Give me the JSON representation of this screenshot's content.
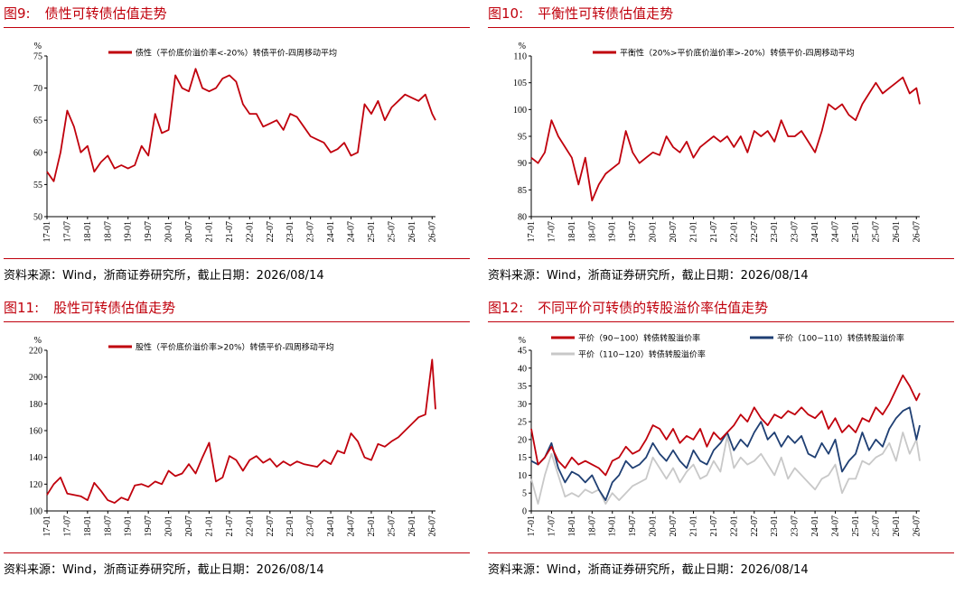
{
  "source_text": "资料来源：Wind，浙商证券研究所，截止日期：2026/08/14",
  "x_ticks": [
    "17-01",
    "17-07",
    "18-01",
    "18-07",
    "19-01",
    "19-07",
    "20-01",
    "20-07",
    "21-01",
    "21-07",
    "22-01",
    "22-07",
    "23-01",
    "23-07",
    "24-01",
    "24-07",
    "25-01",
    "25-07",
    "26-01",
    "26-07"
  ],
  "colors": {
    "red": "#c0000c",
    "blue": "#1f3f73",
    "gray": "#c8c8c8",
    "title": "#c0000c"
  },
  "charts": [
    {
      "fig_num": "图9:",
      "fig_title": "债性可转债估值走势",
      "chart_data": {
        "type": "line",
        "ylabel": "%",
        "ylim": [
          50,
          75
        ],
        "yticks": [
          50,
          55,
          60,
          65,
          70,
          75
        ],
        "x": [
          "17-01",
          "17-03",
          "17-05",
          "17-07",
          "17-09",
          "17-11",
          "18-01",
          "18-03",
          "18-05",
          "18-07",
          "18-09",
          "18-11",
          "19-01",
          "19-03",
          "19-05",
          "19-07",
          "19-09",
          "19-11",
          "20-01",
          "20-03",
          "20-05",
          "20-07",
          "20-09",
          "20-11",
          "21-01",
          "21-03",
          "21-05",
          "21-07",
          "21-09",
          "21-11",
          "22-01",
          "22-03",
          "22-05",
          "22-07",
          "22-09",
          "22-11",
          "23-01",
          "23-03",
          "23-05",
          "23-07",
          "23-09",
          "23-11",
          "24-01",
          "24-03",
          "24-05",
          "24-07",
          "24-09",
          "24-11",
          "25-01",
          "25-03",
          "25-05",
          "25-07",
          "25-09",
          "25-11",
          "26-01",
          "26-03",
          "26-05",
          "26-07",
          "26-08"
        ],
        "series": [
          {
            "name": "债性（平价底价溢价率<-20%）转债平价-四周移动平均",
            "color": "#c0000c",
            "values": [
              57,
              55.5,
              60,
              66.5,
              64,
              60,
              61,
              57,
              58.5,
              59.5,
              57.5,
              58,
              57.5,
              58,
              61,
              59.5,
              66,
              63,
              63.5,
              72,
              70,
              69.5,
              73,
              70,
              69.5,
              70,
              71.5,
              72,
              71,
              67.5,
              66,
              66,
              64,
              64.5,
              65,
              63.5,
              66,
              65.5,
              64,
              62.5,
              62,
              61.5,
              60,
              60.5,
              61.5,
              59.5,
              60,
              67.5,
              66,
              68,
              65,
              67,
              68,
              69,
              68.5,
              68,
              69,
              66,
              65
            ]
          }
        ]
      }
    },
    {
      "fig_num": "图10:",
      "fig_title": "平衡性可转债估值走势",
      "chart_data": {
        "type": "line",
        "ylabel": "%",
        "ylim": [
          80,
          110
        ],
        "yticks": [
          80,
          85,
          90,
          95,
          100,
          105,
          110
        ],
        "x": [
          "17-01",
          "17-03",
          "17-05",
          "17-07",
          "17-09",
          "17-11",
          "18-01",
          "18-03",
          "18-05",
          "18-07",
          "18-09",
          "18-11",
          "19-01",
          "19-03",
          "19-05",
          "19-07",
          "19-09",
          "19-11",
          "20-01",
          "20-03",
          "20-05",
          "20-07",
          "20-09",
          "20-11",
          "21-01",
          "21-03",
          "21-05",
          "21-07",
          "21-09",
          "21-11",
          "22-01",
          "22-03",
          "22-05",
          "22-07",
          "22-09",
          "22-11",
          "23-01",
          "23-03",
          "23-05",
          "23-07",
          "23-09",
          "23-11",
          "24-01",
          "24-03",
          "24-05",
          "24-07",
          "24-09",
          "24-11",
          "25-01",
          "25-03",
          "25-05",
          "25-07",
          "25-09",
          "25-11",
          "26-01",
          "26-03",
          "26-05",
          "26-07",
          "26-08"
        ],
        "series": [
          {
            "name": "平衡性（20%>平价底价溢价率>-20%）转债平价-四周移动平均",
            "color": "#c0000c",
            "values": [
              91,
              90,
              92,
              98,
              95,
              93,
              91,
              86,
              91,
              83,
              86,
              88,
              89,
              90,
              96,
              92,
              90,
              91,
              92,
              91.5,
              95,
              93,
              92,
              94,
              91,
              93,
              94,
              95,
              94,
              95,
              93,
              95,
              92,
              96,
              95,
              96,
              94,
              98,
              95,
              95,
              96,
              94,
              92,
              96,
              101,
              100,
              101,
              99,
              98,
              101,
              103,
              105,
              103,
              104,
              105,
              106,
              103,
              104,
              101
            ]
          }
        ]
      }
    },
    {
      "fig_num": "图11:",
      "fig_title": "股性可转债估值走势",
      "chart_data": {
        "type": "line",
        "ylabel": "%",
        "ylim": [
          100,
          220
        ],
        "yticks": [
          100,
          120,
          140,
          160,
          180,
          200,
          220
        ],
        "x": [
          "17-01",
          "17-03",
          "17-05",
          "17-07",
          "17-09",
          "17-11",
          "18-01",
          "18-03",
          "18-05",
          "18-07",
          "18-09",
          "18-11",
          "19-01",
          "19-03",
          "19-05",
          "19-07",
          "19-09",
          "19-11",
          "20-01",
          "20-03",
          "20-05",
          "20-07",
          "20-09",
          "20-11",
          "21-01",
          "21-03",
          "21-05",
          "21-07",
          "21-09",
          "21-11",
          "22-01",
          "22-03",
          "22-05",
          "22-07",
          "22-09",
          "22-11",
          "23-01",
          "23-03",
          "23-05",
          "23-07",
          "23-09",
          "23-11",
          "24-01",
          "24-03",
          "24-05",
          "24-07",
          "24-09",
          "24-11",
          "25-01",
          "25-03",
          "25-05",
          "25-07",
          "25-09",
          "25-11",
          "26-01",
          "26-03",
          "26-05",
          "26-07",
          "26-08"
        ],
        "series": [
          {
            "name": "股性（平价底价溢价率>20%）转债平价-四周移动平均",
            "color": "#c0000c",
            "values": [
              112,
              120,
              125,
              113,
              112,
              111,
              108,
              121,
              115,
              108,
              106,
              110,
              108,
              119,
              120,
              118,
              122,
              120,
              130,
              126,
              128,
              135,
              128,
              140,
              151,
              122,
              125,
              141,
              138,
              130,
              138,
              141,
              136,
              139,
              133,
              137,
              134,
              137,
              135,
              134,
              133,
              138,
              135,
              145,
              143,
              158,
              152,
              140,
              138,
              150,
              148,
              152,
              155,
              160,
              165,
              170,
              172,
              213,
              176
            ]
          }
        ]
      }
    },
    {
      "fig_num": "图12:",
      "fig_title": "不同平价可转债的转股溢价率估值走势",
      "chart_data": {
        "type": "line",
        "ylabel": "%",
        "ylim": [
          0,
          45
        ],
        "yticks": [
          0,
          5,
          10,
          15,
          20,
          25,
          30,
          35,
          40,
          45
        ],
        "x": [
          "17-01",
          "17-03",
          "17-05",
          "17-07",
          "17-09",
          "17-11",
          "18-01",
          "18-03",
          "18-05",
          "18-07",
          "18-09",
          "18-11",
          "19-01",
          "19-03",
          "19-05",
          "19-07",
          "19-09",
          "19-11",
          "20-01",
          "20-03",
          "20-05",
          "20-07",
          "20-09",
          "20-11",
          "21-01",
          "21-03",
          "21-05",
          "21-07",
          "21-09",
          "21-11",
          "22-01",
          "22-03",
          "22-05",
          "22-07",
          "22-09",
          "22-11",
          "23-01",
          "23-03",
          "23-05",
          "23-07",
          "23-09",
          "23-11",
          "24-01",
          "24-03",
          "24-05",
          "24-07",
          "24-09",
          "24-11",
          "25-01",
          "25-03",
          "25-05",
          "25-07",
          "25-09",
          "25-11",
          "26-01",
          "26-03",
          "26-05",
          "26-07",
          "26-08"
        ],
        "series": [
          {
            "name": "平价（90~100）转债转股溢价率",
            "color": "#c0000c",
            "values": [
              23,
              13,
              15,
              18,
              14,
              12,
              15,
              13,
              14,
              13,
              12,
              10,
              14,
              15,
              18,
              16,
              17,
              20,
              24,
              23,
              20,
              23,
              19,
              21,
              20,
              23,
              18,
              22,
              20,
              22,
              24,
              27,
              25,
              29,
              26,
              24,
              27,
              26,
              28,
              27,
              29,
              27,
              26,
              28,
              23,
              26,
              22,
              24,
              22,
              26,
              25,
              29,
              27,
              30,
              34,
              38,
              35,
              31,
              33
            ]
          },
          {
            "name": "平价（100~110）转债转股溢价率",
            "color": "#1f3f73",
            "values": [
              14,
              13,
              15,
              19,
              12,
              8,
              11,
              10,
              8,
              10,
              6,
              3,
              8,
              10,
              14,
              12,
              13,
              15,
              19,
              16,
              14,
              17,
              14,
              12,
              17,
              14,
              13,
              17,
              19,
              22,
              17,
              20,
              18,
              22,
              25,
              20,
              22,
              18,
              21,
              19,
              21,
              16,
              15,
              19,
              16,
              20,
              11,
              14,
              16,
              22,
              17,
              20,
              18,
              23,
              26,
              28,
              29,
              20,
              24
            ]
          },
          {
            "name": "平价（110~120）转债转股溢价率",
            "color": "#c8c8c8",
            "values": [
              9,
              2,
              10,
              16,
              10,
              4,
              5,
              4,
              6,
              5,
              6,
              2,
              5,
              3,
              5,
              7,
              8,
              9,
              15,
              12,
              9,
              12,
              8,
              11,
              13,
              9,
              10,
              14,
              11,
              21,
              12,
              15,
              13,
              14,
              16,
              13,
              10,
              15,
              9,
              12,
              10,
              8,
              6,
              9,
              10,
              13,
              5,
              9,
              9,
              14,
              13,
              15,
              16,
              19,
              14,
              22,
              16,
              20,
              14
            ]
          }
        ]
      }
    }
  ]
}
